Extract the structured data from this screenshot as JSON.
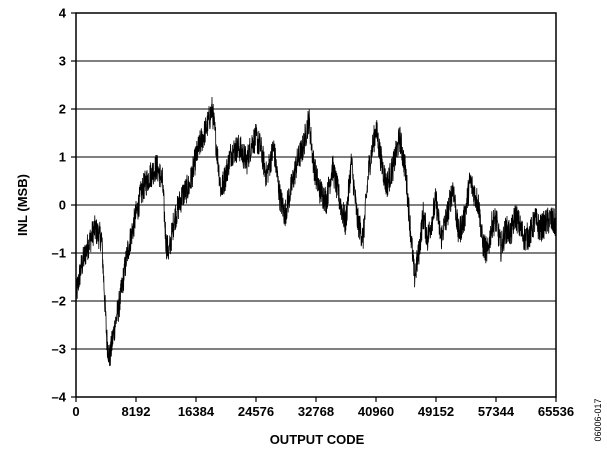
{
  "chart_data": {
    "type": "line",
    "xlabel": "OUTPUT CODE",
    "ylabel": "INL (MSB)",
    "xlim": [
      0,
      65536
    ],
    "ylim": [
      -4,
      4
    ],
    "x_ticks": [
      0,
      8192,
      16384,
      24576,
      32768,
      40960,
      49152,
      57344,
      65536
    ],
    "x_tick_labels": [
      "0",
      "8192",
      "16384",
      "24576",
      "32768",
      "40960",
      "49152",
      "57344",
      "65536"
    ],
    "y_ticks": [
      -4,
      -3,
      -2,
      -1,
      0,
      1,
      2,
      3,
      4
    ],
    "y_tick_labels": [
      "–4",
      "–3",
      "–2",
      "–1",
      "0",
      "1",
      "2",
      "3",
      "4"
    ],
    "grid": "horizontal",
    "series": [
      {
        "color": "#000000",
        "noise": 0.3,
        "x": [
          0,
          700,
          1500,
          2500,
          3500,
          4200,
          4600,
          5200,
          6000,
          7000,
          8192,
          9000,
          10000,
          11000,
          11800,
          12300,
          12700,
          13400,
          14500,
          15500,
          16384,
          17000,
          17800,
          18600,
          19200,
          19800,
          20400,
          21200,
          22300,
          23300,
          24000,
          24576,
          25200,
          26000,
          27000,
          27800,
          28500,
          29300,
          30200,
          31000,
          31800,
          32400,
          32768,
          33300,
          34200,
          35000,
          36000,
          36800,
          37600,
          38400,
          39200,
          40000,
          40960,
          41700,
          42400,
          43300,
          44200,
          45000,
          45500,
          46200,
          46800,
          47400,
          48000,
          48600,
          49152,
          49800,
          50700,
          51500,
          52200,
          53000,
          53800,
          54500,
          55000,
          55500,
          56200,
          56800,
          57344,
          58000,
          58700,
          59400,
          60000,
          60700,
          61300,
          62000,
          62700,
          63300,
          64000,
          64700,
          65536
        ],
        "y": [
          -1.9,
          -1.3,
          -0.9,
          -0.5,
          -0.7,
          -2.8,
          -3.2,
          -2.6,
          -2.0,
          -1.0,
          -0.2,
          0.3,
          0.6,
          0.8,
          0.5,
          -0.8,
          -1.0,
          -0.3,
          0.2,
          0.4,
          1.0,
          1.3,
          1.6,
          2.0,
          1.2,
          0.3,
          0.6,
          1.1,
          1.2,
          0.9,
          1.3,
          1.4,
          1.2,
          0.6,
          1.2,
          0.2,
          -0.2,
          0.3,
          0.9,
          1.2,
          1.8,
          0.9,
          0.6,
          0.3,
          0.1,
          0.8,
          0.1,
          -0.4,
          0.9,
          -0.3,
          -0.7,
          0.8,
          1.6,
          0.9,
          0.4,
          0.8,
          1.4,
          0.7,
          -0.2,
          -1.5,
          -1.0,
          -0.2,
          -0.7,
          -0.3,
          0.1,
          -0.7,
          -0.2,
          0.4,
          -0.6,
          -0.3,
          0.5,
          0.2,
          0.0,
          -0.8,
          -1.0,
          -0.4,
          -0.3,
          -0.9,
          -0.5,
          -0.6,
          -0.2,
          -0.5,
          -0.7,
          -0.6,
          -0.3,
          -0.5,
          -0.4,
          -0.3,
          -0.4
        ]
      }
    ]
  },
  "figure_id": "06006-017"
}
